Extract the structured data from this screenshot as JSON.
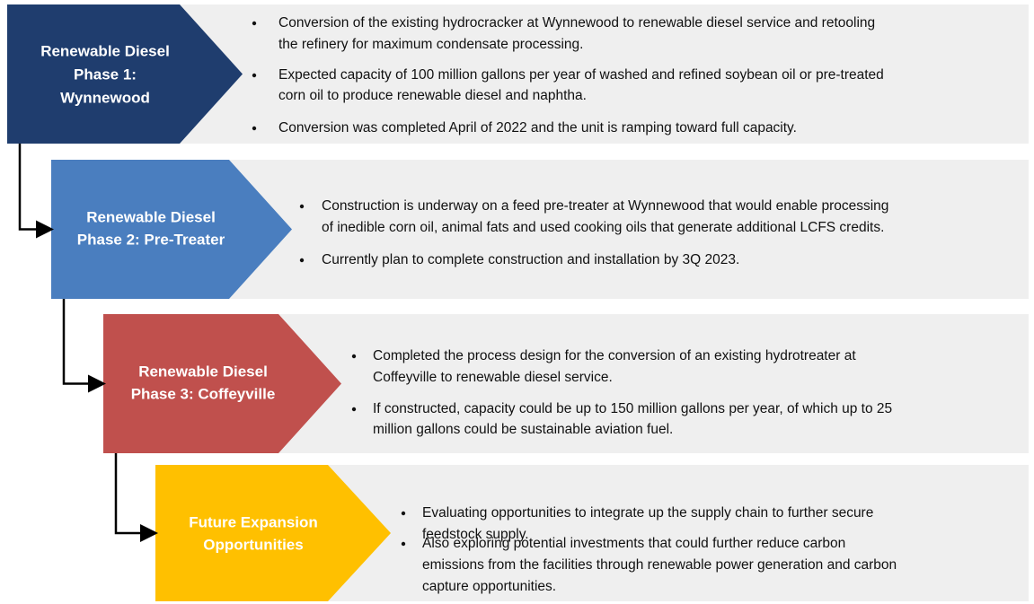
{
  "phases": [
    {
      "title": [
        "Renewable Diesel",
        "Phase 1:",
        "Wynnewood"
      ],
      "color": "#1f3d6e",
      "bullets": [
        [
          "Conversion of the existing hydrocracker at Wynnewood to renewable diesel service and retooling",
          "the refinery for maximum condensate processing."
        ],
        [
          "Expected capacity of 100 million gallons per year of washed and refined soybean oil or pre-treated",
          "corn oil to produce renewable diesel and naphtha."
        ],
        [
          "Conversion was completed April of 2022 and the unit is ramping toward full capacity."
        ]
      ]
    },
    {
      "title": [
        "Renewable Diesel",
        "Phase 2: Pre-Treater"
      ],
      "color": "#4a7ebf",
      "bullets": [
        [
          "Construction is underway on a feed pre-treater at Wynnewood that would enable processing",
          "of inedible corn oil, animal fats and used cooking oils that generate additional LCFS credits."
        ],
        [
          "Currently plan to complete construction and installation by 3Q 2023."
        ]
      ]
    },
    {
      "title": [
        "Renewable Diesel",
        "Phase 3: Coffeyville"
      ],
      "color": "#c0504d",
      "bullets": [
        [
          "Completed the process design for the conversion of an existing hydrotreater at",
          "Coffeyville to renewable diesel service."
        ],
        [
          "If constructed, capacity could be up to 150 million gallons per year, of which up to 25",
          "million gallons could be sustainable aviation fuel."
        ]
      ]
    },
    {
      "title": [
        "Future Expansion",
        "Opportunities"
      ],
      "color": "#ffc000",
      "bullets": [
        [
          "Evaluating opportunities to integrate up the supply chain to further secure",
          "feedstock supply."
        ],
        [
          "Also exploring potential investments that could further reduce carbon",
          "emissions from the facilities through renewable power generation and carbon",
          "capture opportunities."
        ]
      ]
    }
  ]
}
